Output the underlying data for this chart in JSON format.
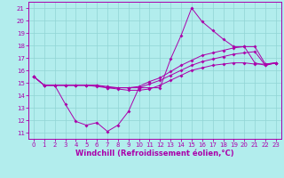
{
  "xlabel": "Windchill (Refroidissement éolien,°C)",
  "background_color": "#b2eded",
  "grid_color": "#90d4d4",
  "line_color": "#aa00aa",
  "xlim": [
    -0.5,
    23.5
  ],
  "ylim": [
    10.5,
    21.5
  ],
  "xticks": [
    0,
    1,
    2,
    3,
    4,
    5,
    6,
    7,
    8,
    9,
    10,
    11,
    12,
    13,
    14,
    15,
    16,
    17,
    18,
    19,
    20,
    21,
    22,
    23
  ],
  "yticks": [
    11,
    12,
    13,
    14,
    15,
    16,
    17,
    18,
    19,
    20,
    21
  ],
  "line1_x": [
    0,
    1,
    2,
    3,
    4,
    5,
    6,
    7,
    8,
    9,
    10,
    11,
    12,
    13,
    14,
    15,
    16,
    17,
    18,
    19,
    20,
    21,
    22,
    23
  ],
  "line1_y": [
    15.5,
    14.8,
    14.8,
    13.3,
    11.9,
    11.6,
    11.8,
    11.1,
    11.6,
    12.7,
    14.6,
    14.6,
    14.6,
    16.9,
    18.8,
    21.0,
    19.9,
    19.2,
    18.5,
    17.9,
    17.9,
    16.6,
    16.4,
    16.6
  ],
  "line2_x": [
    0,
    1,
    2,
    3,
    4,
    5,
    6,
    7,
    8,
    9,
    10,
    11,
    12,
    13,
    14,
    15,
    16,
    17,
    18,
    19,
    20,
    21,
    22,
    23
  ],
  "line2_y": [
    15.5,
    14.8,
    14.8,
    14.8,
    14.8,
    14.8,
    14.8,
    14.7,
    14.6,
    14.6,
    14.7,
    15.1,
    15.4,
    15.9,
    16.4,
    16.8,
    17.2,
    17.4,
    17.6,
    17.8,
    17.9,
    17.9,
    16.5,
    16.6
  ],
  "line3_x": [
    0,
    1,
    2,
    3,
    4,
    5,
    6,
    7,
    8,
    9,
    10,
    11,
    12,
    13,
    14,
    15,
    16,
    17,
    18,
    19,
    20,
    21,
    22,
    23
  ],
  "line3_y": [
    15.5,
    14.8,
    14.8,
    14.8,
    14.8,
    14.8,
    14.8,
    14.6,
    14.6,
    14.6,
    14.6,
    14.9,
    15.2,
    15.6,
    16.0,
    16.4,
    16.7,
    16.9,
    17.1,
    17.3,
    17.4,
    17.5,
    16.4,
    16.6
  ],
  "line4_x": [
    0,
    1,
    2,
    3,
    4,
    5,
    6,
    7,
    8,
    9,
    10,
    11,
    12,
    13,
    14,
    15,
    16,
    17,
    18,
    19,
    20,
    21,
    22,
    23
  ],
  "line4_y": [
    15.5,
    14.8,
    14.8,
    14.8,
    14.8,
    14.8,
    14.7,
    14.6,
    14.5,
    14.4,
    14.4,
    14.5,
    14.8,
    15.2,
    15.6,
    16.0,
    16.2,
    16.4,
    16.5,
    16.6,
    16.6,
    16.5,
    16.5,
    16.6
  ],
  "xlabel_fontsize": 6,
  "tick_fontsize": 5
}
